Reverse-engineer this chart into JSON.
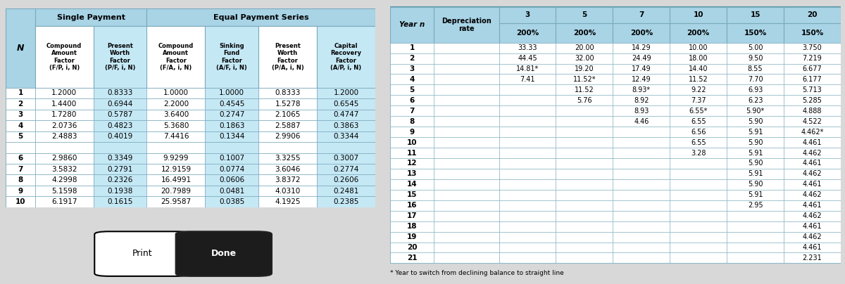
{
  "left_table": {
    "col_labels": [
      "N",
      "Compound\nAmount\nFactor\n(F/P, i, N)",
      "Present\nWorth\nFactor\n(P/F, i, N)",
      "Compound\nAmount\nFactor\n(F/A, i, N)",
      "Sinking\nFund\nFactor\n(A/F, i, N)",
      "Present\nWorth\nFactor\n(P/A, i, N)",
      "Capital\nRecovery\nFactor\n(A/P, i, N)"
    ],
    "rows": [
      [
        "1",
        "1.2000",
        "0.8333",
        "1.0000",
        "1.0000",
        "0.8333",
        "1.2000"
      ],
      [
        "2",
        "1.4400",
        "0.6944",
        "2.2000",
        "0.4545",
        "1.5278",
        "0.6545"
      ],
      [
        "3",
        "1.7280",
        "0.5787",
        "3.6400",
        "0.2747",
        "2.1065",
        "0.4747"
      ],
      [
        "4",
        "2.0736",
        "0.4823",
        "5.3680",
        "0.1863",
        "2.5887",
        "0.3863"
      ],
      [
        "5",
        "2.4883",
        "0.4019",
        "7.4416",
        "0.1344",
        "2.9906",
        "0.3344"
      ],
      [
        "",
        "",
        "",
        "",
        "",
        "",
        ""
      ],
      [
        "6",
        "2.9860",
        "0.3349",
        "9.9299",
        "0.1007",
        "3.3255",
        "0.3007"
      ],
      [
        "7",
        "3.5832",
        "0.2791",
        "12.9159",
        "0.0774",
        "3.6046",
        "0.2774"
      ],
      [
        "8",
        "4.2998",
        "0.2326",
        "16.4991",
        "0.0606",
        "3.8372",
        "0.2606"
      ],
      [
        "9",
        "5.1598",
        "0.1938",
        "20.7989",
        "0.0481",
        "4.0310",
        "0.2481"
      ],
      [
        "10",
        "6.1917",
        "0.1615",
        "25.9587",
        "0.0385",
        "4.1925",
        "0.2385"
      ]
    ],
    "highlight_cols": [
      2,
      4,
      6
    ],
    "header_bg": "#A8D4E6",
    "highlight_bg": "#C5E8F5",
    "white_bg": "#FFFFFF",
    "border_color": "#7AAABB"
  },
  "right_table": {
    "classes": [
      "3",
      "5",
      "7",
      "10",
      "15",
      "20"
    ],
    "dep_rates": [
      "200%",
      "200%",
      "200%",
      "200%",
      "150%",
      "150%"
    ],
    "rows": [
      [
        "1",
        "33.33",
        "20.00",
        "14.29",
        "10.00",
        "5.00",
        "3.750"
      ],
      [
        "2",
        "44.45",
        "32.00",
        "24.49",
        "18.00",
        "9.50",
        "7.219"
      ],
      [
        "3",
        "14.81*",
        "19.20",
        "17.49",
        "14.40",
        "8.55",
        "6.677"
      ],
      [
        "4",
        "7.41",
        "11.52*",
        "12.49",
        "11.52",
        "7.70",
        "6.177"
      ],
      [
        "5",
        "",
        "11.52",
        "8.93*",
        "9.22",
        "6.93",
        "5.713"
      ],
      [
        "6",
        "",
        "5.76",
        "8.92",
        "7.37",
        "6.23",
        "5.285"
      ],
      [
        "7",
        "",
        "",
        "8.93",
        "6.55*",
        "5.90*",
        "4.888"
      ],
      [
        "8",
        "",
        "",
        "4.46",
        "6.55",
        "5.90",
        "4.522"
      ],
      [
        "9",
        "",
        "",
        "",
        "6.56",
        "5.91",
        "4.462*"
      ],
      [
        "10",
        "",
        "",
        "",
        "6.55",
        "5.90",
        "4.461"
      ],
      [
        "11",
        "",
        "",
        "",
        "3.28",
        "5.91",
        "4.462"
      ],
      [
        "12",
        "",
        "",
        "",
        "",
        "5.90",
        "4.461"
      ],
      [
        "13",
        "",
        "",
        "",
        "",
        "5.91",
        "4.462"
      ],
      [
        "14",
        "",
        "",
        "",
        "",
        "5.90",
        "4.461"
      ],
      [
        "15",
        "",
        "",
        "",
        "",
        "5.91",
        "4.462"
      ],
      [
        "16",
        "",
        "",
        "",
        "",
        "2.95",
        "4.461"
      ],
      [
        "17",
        "",
        "",
        "",
        "",
        "",
        "4.462"
      ],
      [
        "18",
        "",
        "",
        "",
        "",
        "",
        "4.461"
      ],
      [
        "19",
        "",
        "",
        "",
        "",
        "",
        "4.462"
      ],
      [
        "20",
        "",
        "",
        "",
        "",
        "",
        "4.461"
      ],
      [
        "21",
        "",
        "",
        "",
        "",
        "",
        "2.231"
      ]
    ],
    "footnote": "* Year to switch from declining balance to straight line",
    "header_bg": "#A8D4E6",
    "white_bg": "#FFFFFF",
    "border_color": "#7AAABB"
  },
  "bg_color": "#D8D8D8",
  "button_text_print": "Print",
  "button_text_done": "Done"
}
